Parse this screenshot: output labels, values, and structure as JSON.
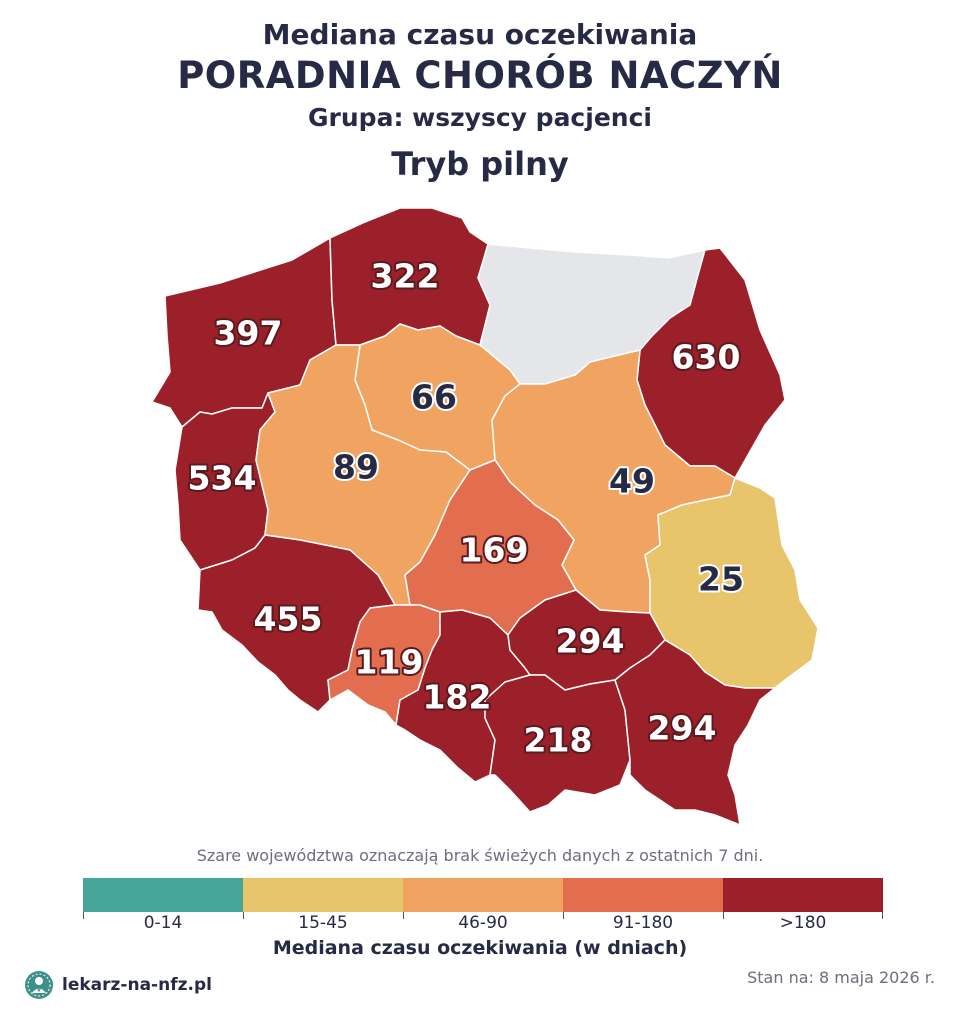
{
  "header": {
    "title_line1": "Mediana czasu oczekiwania",
    "title_line2": "PORADNIA CHORÓB NACZYŃ",
    "group": "Grupa: wszyscy pacjenci",
    "mode": "Tryb pilny"
  },
  "colors": {
    "no_data": "#e4e6ea",
    "band_0_14": "#45a597",
    "band_15_45": "#e8c46b",
    "band_46_90": "#f1a462",
    "band_91_180": "#e36d4f",
    "band_180_plus": "#9b2029",
    "text_dark": "#262a45"
  },
  "regions": {
    "zachodniopomorskie": {
      "value": "397",
      "band": "band_180_plus"
    },
    "pomorskie": {
      "value": "322",
      "band": "band_180_plus"
    },
    "warminsko_mazurskie": {
      "value": "",
      "band": "no_data"
    },
    "podlaskie": {
      "value": "630",
      "band": "band_180_plus"
    },
    "kujawsko_pomorskie": {
      "value": "66",
      "band": "band_46_90"
    },
    "lubuskie": {
      "value": "534",
      "band": "band_180_plus"
    },
    "wielkopolskie": {
      "value": "89",
      "band": "band_46_90"
    },
    "mazowieckie": {
      "value": "49",
      "band": "band_46_90"
    },
    "lodzkie": {
      "value": "169",
      "band": "band_91_180"
    },
    "lubelskie": {
      "value": "25",
      "band": "band_15_45"
    },
    "dolnoslaskie": {
      "value": "455",
      "band": "band_180_plus"
    },
    "opolskie": {
      "value": "119",
      "band": "band_91_180"
    },
    "slaskie": {
      "value": "182",
      "band": "band_180_plus"
    },
    "swietokrzyskie": {
      "value": "294",
      "band": "band_180_plus"
    },
    "malopolskie": {
      "value": "218",
      "band": "band_180_plus"
    },
    "podkarpackie": {
      "value": "294",
      "band": "band_180_plus"
    }
  },
  "note": "Szare województwa oznaczają brak świeżych danych z ostatnich 7 dni.",
  "legend": {
    "title": "Mediana czasu oczekiwania (w dniach)",
    "items": [
      {
        "label": "0-14",
        "color": "#45a597"
      },
      {
        "label": "15-45",
        "color": "#e8c46b"
      },
      {
        "label": "46-90",
        "color": "#f1a462"
      },
      {
        "label": "91-180",
        "color": "#e36d4f"
      },
      {
        "label": ">180",
        "color": "#9b2029"
      }
    ]
  },
  "footer": {
    "brand": "lekarz-na-nfz.pl",
    "date": "Stan na: 8 maja 2026 r."
  }
}
